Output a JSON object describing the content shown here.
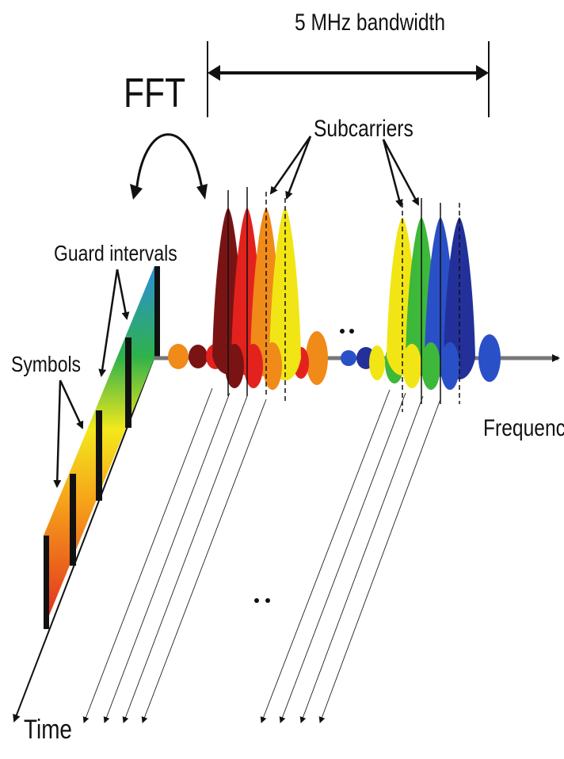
{
  "labels": {
    "fft": "FFT",
    "bandwidth": "5 MHz bandwidth",
    "subcarriers": "Subcarriers",
    "guard_intervals": "Guard intervals",
    "symbols": "Symbols",
    "frequency": "Frequency",
    "time": "Time"
  },
  "colors": {
    "subcarrier_group_1": [
      "#7a1414",
      "#e3221d",
      "#f08a19",
      "#f2e515"
    ],
    "subcarrier_group_2": [
      "#f2e515",
      "#3db83a",
      "#2a50c8",
      "#23309a"
    ],
    "axis": "#777777",
    "arrow": "#111111"
  }
}
